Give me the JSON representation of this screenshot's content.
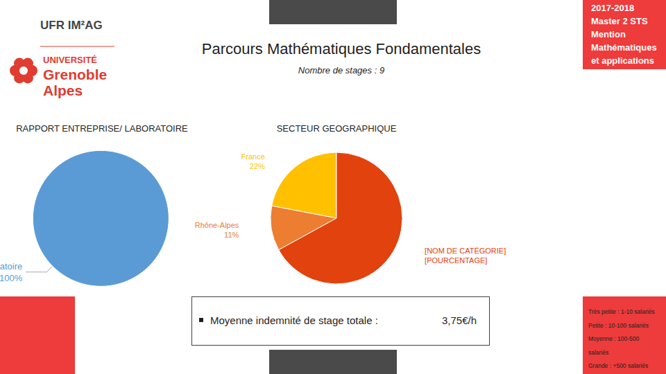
{
  "header": {
    "logo": {
      "ufr": "UFR IM²AG",
      "university": "UNIVERSITÉ",
      "city": "Grenoble",
      "region": "Alpes"
    },
    "title": "Parcours Mathématiques Fondamentales",
    "subtitle": "Nombre de stages : 9"
  },
  "badge": [
    "2017-2018",
    "Master 2 STS",
    "Mention",
    "Mathématiques",
    "et applications"
  ],
  "chart_data": [
    {
      "type": "pie",
      "title": "RAPPORT ENTREPRISE/ LABORATOIRE",
      "categories": [
        "Laboratoire"
      ],
      "values": [
        100
      ],
      "value_labels": [
        "100%"
      ],
      "colors": [
        "#5b9bd5"
      ],
      "data_labels": true
    },
    {
      "type": "pie",
      "title": "SECTEUR GEOGRAPHIQUE",
      "categories": [
        "France",
        "Rhône-Alpes",
        "[NOM DE CATÉGORIE]"
      ],
      "values": [
        22,
        11,
        67
      ],
      "value_labels": [
        "22%",
        "11%",
        "[POURCENTAGE]"
      ],
      "colors": [
        "#ffc000",
        "#ed7d31",
        "#e2420e"
      ],
      "data_labels": true
    }
  ],
  "summary": {
    "label": "Moyenne indemnité de stage totale :",
    "value": "3,75€/h"
  },
  "size_legend": [
    "Très petite : 1-10 salariés",
    "Petite : 10-100 salariés",
    "Moyenne : 100-500",
    "salariés",
    "Grande : +500 salariés"
  ]
}
